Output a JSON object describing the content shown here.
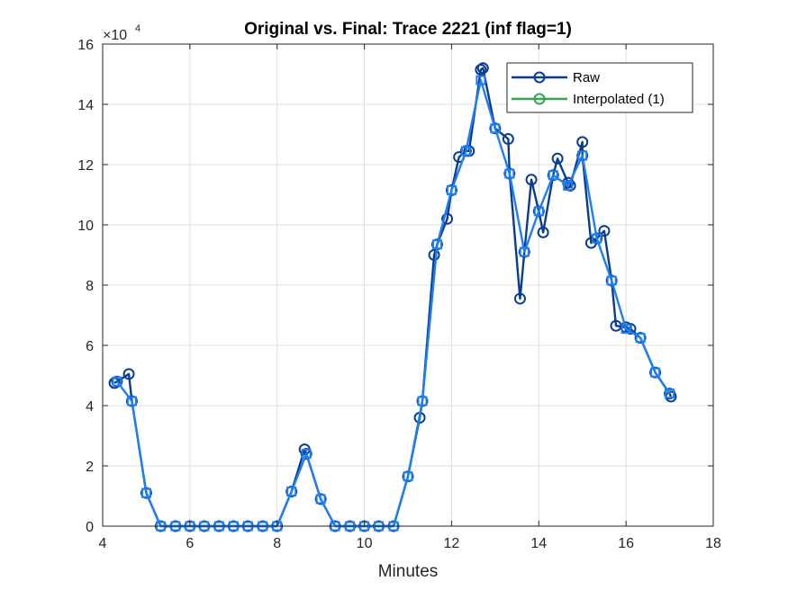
{
  "chart_data": {
    "type": "line",
    "title": "Original vs. Final: Trace 2221 (inf flag=1)",
    "xlabel": "Minutes",
    "ylabel": "",
    "xlim": [
      4,
      18
    ],
    "ylim": [
      0,
      160000
    ],
    "x_ticks": [
      4,
      6,
      8,
      10,
      12,
      14,
      16,
      18
    ],
    "y_ticks": [
      0,
      2,
      4,
      6,
      8,
      10,
      12,
      14,
      16
    ],
    "y_exponent_base": "×10",
    "y_exponent_power": "4",
    "grid": true,
    "legend_position": "top-right",
    "series": [
      {
        "name": "Raw",
        "color": "#0a3d91",
        "marker": "circle",
        "x": [
          4.27,
          4.33,
          4.6,
          4.67,
          5.0,
          5.33,
          5.67,
          6.0,
          6.33,
          6.67,
          7.0,
          7.33,
          7.67,
          8.0,
          8.33,
          8.63,
          8.67,
          9.0,
          9.33,
          9.67,
          10.0,
          10.33,
          10.67,
          11.0,
          11.27,
          11.33,
          11.6,
          11.67,
          11.9,
          12.0,
          12.17,
          12.33,
          12.4,
          12.67,
          12.72,
          13.0,
          13.3,
          13.33,
          13.57,
          13.67,
          13.83,
          14.0,
          14.1,
          14.33,
          14.43,
          14.67,
          14.72,
          15.0,
          15.0,
          15.2,
          15.33,
          15.5,
          15.67,
          15.77,
          16.0,
          16.1,
          16.33,
          16.67,
          17.0,
          17.03
        ],
        "y": [
          47500,
          48000,
          50500,
          41500,
          11000,
          0,
          0,
          0,
          0,
          0,
          0,
          0,
          0,
          0,
          11500,
          25500,
          24000,
          9000,
          0,
          0,
          0,
          0,
          0,
          16500,
          36000,
          41500,
          90000,
          93500,
          102000,
          111500,
          122500,
          124500,
          124500,
          151500,
          152000,
          132000,
          128500,
          117000,
          75500,
          91000,
          115000,
          104500,
          97500,
          116500,
          122000,
          114000,
          113000,
          127500,
          123000,
          94000,
          95500,
          98000,
          81500,
          66500,
          66000,
          65500,
          62500,
          51000,
          44000,
          43000
        ]
      },
      {
        "name": "Interpolated (1)",
        "color": "#3aa357",
        "marker": "circle",
        "x": [],
        "y": []
      },
      {
        "name": "",
        "color": "#1f7ff0",
        "marker": "square",
        "x": [
          4.33,
          4.67,
          5.0,
          5.33,
          5.67,
          6.0,
          6.33,
          6.67,
          7.0,
          7.33,
          7.67,
          8.0,
          8.33,
          8.67,
          9.0,
          9.33,
          9.67,
          10.0,
          10.33,
          10.67,
          11.0,
          11.33,
          11.67,
          12.0,
          12.33,
          12.67,
          13.0,
          13.33,
          13.67,
          14.0,
          14.33,
          14.67,
          15.0,
          15.33,
          15.67,
          16.0,
          16.33,
          16.67,
          17.0
        ],
        "y": [
          48000,
          41500,
          11000,
          0,
          0,
          0,
          0,
          0,
          0,
          0,
          0,
          0,
          11500,
          24000,
          9000,
          0,
          0,
          0,
          0,
          0,
          16500,
          41500,
          93500,
          111500,
          124500,
          148000,
          132000,
          117000,
          91000,
          104500,
          116500,
          113000,
          123000,
          95500,
          81500,
          65500,
          62500,
          51000,
          44000
        ]
      }
    ]
  }
}
